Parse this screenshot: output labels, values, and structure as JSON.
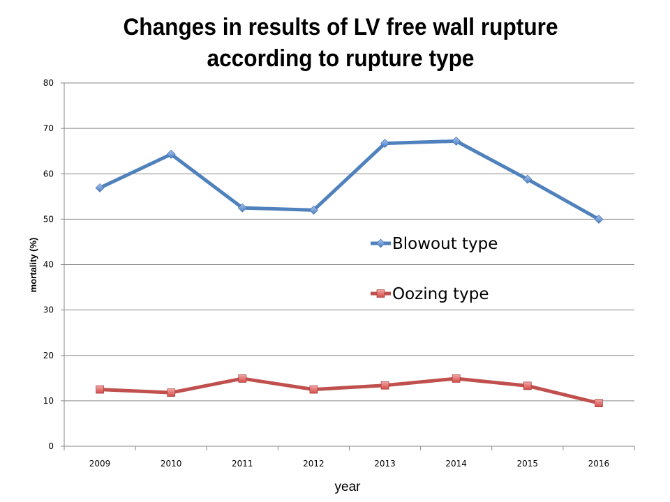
{
  "chart_data": {
    "type": "line",
    "title": [
      "Changes in results of LV free wall rupture",
      "according to rupture type"
    ],
    "xlabel": "year",
    "ylabel": "mortality (%)",
    "categories": [
      "2009",
      "2010",
      "2011",
      "2012",
      "2013",
      "2014",
      "2015",
      "2016"
    ],
    "ylim": [
      0,
      80
    ],
    "yticks": [
      "0",
      "10",
      "20",
      "30",
      "40",
      "50",
      "60",
      "70",
      "80"
    ],
    "grid": true,
    "legend_position": "center-right",
    "series": [
      {
        "name": "Blowout type",
        "color": "#4F81BD",
        "marker": "diamond",
        "values": [
          56.9,
          64.3,
          52.5,
          52.0,
          66.7,
          67.2,
          58.8,
          50.0
        ]
      },
      {
        "name": "Oozing type",
        "color": "#C0504D",
        "marker": "square",
        "values": [
          12.5,
          11.8,
          14.9,
          12.5,
          13.4,
          14.9,
          13.3,
          9.5
        ]
      }
    ]
  }
}
